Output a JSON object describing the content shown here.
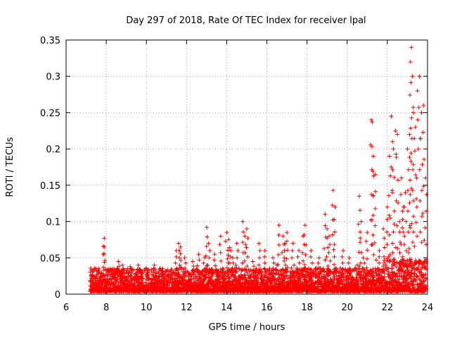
{
  "chart_data": {
    "type": "scatter",
    "title": "Day 297 of 2018, Rate Of TEC Index for receiver lpal",
    "xlabel": "GPS time / hours",
    "ylabel": "ROTI / TECUs",
    "xlim": [
      6,
      24
    ],
    "ylim": [
      0,
      0.35
    ],
    "grid": true,
    "marker": "+",
    "marker_color": "#ff0000",
    "x_ticks": [
      6,
      8,
      10,
      12,
      14,
      16,
      18,
      20,
      22,
      24
    ],
    "x_tick_labels": [
      "6",
      "8",
      "10",
      "12",
      "14",
      "16",
      "18",
      "20",
      "22",
      "24"
    ],
    "y_ticks": [
      0,
      0.05,
      0.1,
      0.15,
      0.2,
      0.25,
      0.3,
      0.35
    ],
    "y_tick_labels": [
      "0",
      "0.05",
      "0.1",
      "0.15",
      "0.2",
      "0.25",
      "0.3",
      "0.35"
    ],
    "series": [
      {
        "name": "ROTI",
        "x": [
          7.3,
          7.6,
          7.9,
          7.9,
          8.2,
          8.6,
          8.8,
          9.2,
          9.6,
          10.0,
          10.4,
          10.8,
          11.2,
          11.5,
          11.6,
          11.7,
          11.9,
          12.3,
          12.6,
          12.9,
          13.0,
          13.1,
          13.4,
          13.7,
          14.0,
          14.1,
          14.2,
          14.3,
          14.5,
          14.8,
          14.9,
          15.0,
          15.3,
          15.6,
          15.9,
          16.3,
          16.5,
          16.6,
          16.8,
          16.9,
          17.0,
          17.3,
          17.6,
          17.8,
          17.9,
          18.2,
          18.6,
          18.9,
          19.0,
          19.1,
          19.3,
          19.4,
          19.8,
          20.1,
          20.5,
          20.6,
          20.7,
          20.8,
          21.0,
          21.2,
          21.25,
          21.3,
          21.4,
          21.6,
          21.8,
          22.0,
          22.1,
          22.2,
          22.3,
          22.4,
          22.5,
          22.6,
          22.7,
          22.8,
          22.9,
          23.0,
          23.1,
          23.15,
          23.2,
          23.25,
          23.3,
          23.4,
          23.5,
          23.6,
          23.7,
          23.8,
          23.9
        ],
        "y": [
          0.025,
          0.03,
          0.077,
          0.065,
          0.035,
          0.045,
          0.04,
          0.038,
          0.04,
          0.035,
          0.04,
          0.035,
          0.032,
          0.06,
          0.07,
          0.065,
          0.05,
          0.045,
          0.055,
          0.05,
          0.092,
          0.07,
          0.055,
          0.08,
          0.085,
          0.075,
          0.06,
          0.05,
          0.07,
          0.1,
          0.08,
          0.09,
          0.045,
          0.07,
          0.06,
          0.05,
          0.04,
          0.095,
          0.08,
          0.07,
          0.085,
          0.07,
          0.06,
          0.08,
          0.095,
          0.06,
          0.05,
          0.11,
          0.09,
          0.08,
          0.143,
          0.12,
          0.06,
          0.05,
          0.04,
          0.135,
          0.1,
          0.05,
          0.085,
          0.24,
          0.237,
          0.19,
          0.165,
          0.06,
          0.09,
          0.12,
          0.19,
          0.245,
          0.2,
          0.225,
          0.22,
          0.1,
          0.16,
          0.12,
          0.14,
          0.2,
          0.22,
          0.32,
          0.34,
          0.3,
          0.25,
          0.23,
          0.28,
          0.3,
          0.25,
          0.26,
          0.16
        ]
      }
    ]
  }
}
